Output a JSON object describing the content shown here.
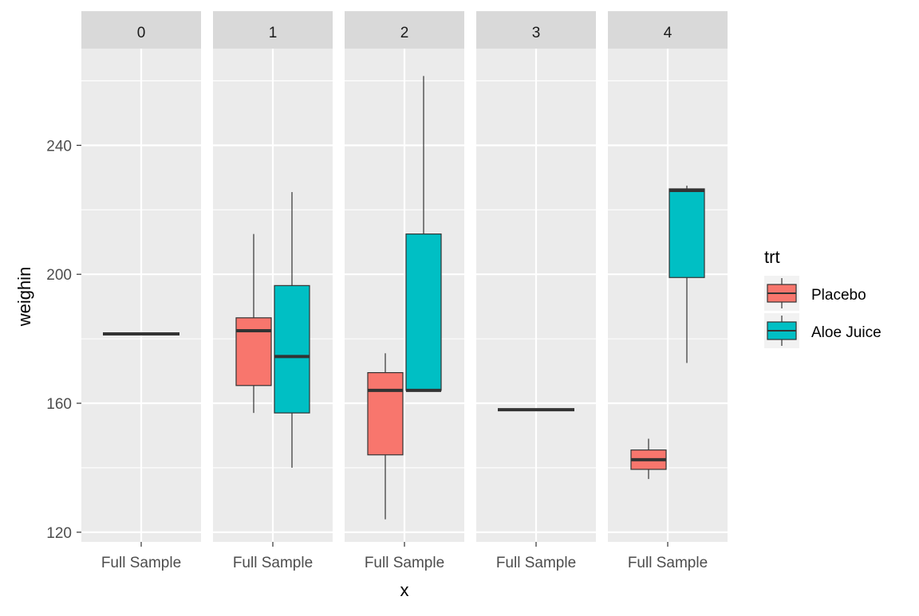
{
  "chart_data": {
    "type": "box",
    "facet_variable_values": [
      "0",
      "1",
      "2",
      "3",
      "4"
    ],
    "x_category": "Full Sample",
    "xlabel": "x",
    "ylabel": "weighin",
    "ylim": [
      117,
      270
    ],
    "yticks": [
      120,
      160,
      200,
      240
    ],
    "grid": true,
    "legend": {
      "title": "trt",
      "placement": "right",
      "entries": [
        {
          "name": "Placebo",
          "color": "#F8766D"
        },
        {
          "name": "Aloe Juice",
          "color": "#00BFC4"
        }
      ]
    },
    "colors": {
      "panel_bg": "#EBEBEB",
      "strip_bg": "#D9D9D9",
      "grid": "#FFFFFF",
      "outline": "#333333",
      "placebo": "#F8766D",
      "aloe": "#00BFC4",
      "text": "#4D4D4D",
      "title": "#000000"
    },
    "panels": [
      {
        "facet": "0",
        "boxes": [
          {
            "group": "combined",
            "whisker_low": 181.5,
            "q1": 181.5,
            "median": 181.5,
            "q3": 181.5,
            "whisker_high": 181.5
          }
        ]
      },
      {
        "facet": "1",
        "boxes": [
          {
            "group": "Placebo",
            "whisker_low": 157,
            "q1": 165.5,
            "median": 182.5,
            "q3": 186.5,
            "whisker_high": 212.5
          },
          {
            "group": "Aloe Juice",
            "whisker_low": 140,
            "q1": 157,
            "median": 174.5,
            "q3": 196.5,
            "whisker_high": 225.5
          }
        ]
      },
      {
        "facet": "2",
        "boxes": [
          {
            "group": "Placebo",
            "whisker_low": 124,
            "q1": 144,
            "median": 164,
            "q3": 169.5,
            "whisker_high": 175.5
          },
          {
            "group": "Aloe Juice",
            "whisker_low": 164,
            "q1": 164,
            "median": 164,
            "q3": 212.5,
            "whisker_high": 261.5
          }
        ]
      },
      {
        "facet": "3",
        "boxes": [
          {
            "group": "combined",
            "whisker_low": 158,
            "q1": 158,
            "median": 158,
            "q3": 158,
            "whisker_high": 158
          }
        ]
      },
      {
        "facet": "4",
        "boxes": [
          {
            "group": "Placebo",
            "whisker_low": 136.5,
            "q1": 139.5,
            "median": 142.5,
            "q3": 145.5,
            "whisker_high": 149
          },
          {
            "group": "Aloe Juice",
            "whisker_low": 172.5,
            "q1": 199,
            "median": 226,
            "q3": 226.5,
            "whisker_high": 227.5
          }
        ]
      }
    ]
  }
}
